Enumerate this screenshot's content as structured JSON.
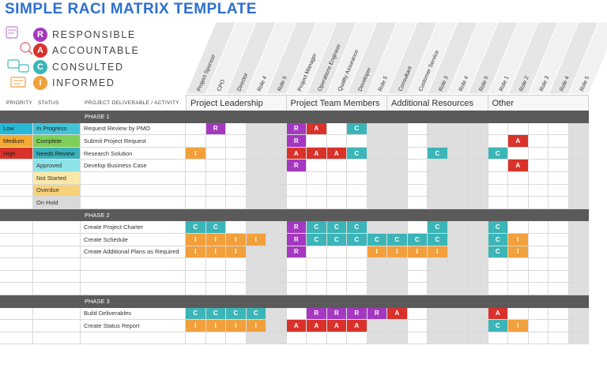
{
  "title": "SIMPLE RACI MATRIX TEMPLATE",
  "legend": [
    {
      "letter": "R",
      "label": "RESPONSIBLE",
      "color": "#a438c0"
    },
    {
      "letter": "A",
      "label": "ACCOUNTABLE",
      "color": "#d8322b"
    },
    {
      "letter": "C",
      "label": "CONSULTED",
      "color": "#3bb5b7"
    },
    {
      "letter": "I",
      "label": "INFORMED",
      "color": "#f2a03c"
    }
  ],
  "illustration_icon": "raci-illustration-icon",
  "column_headers": {
    "priority": "PRIORITY",
    "status": "STATUS",
    "deliverable": "PROJECT DELIVERABLE / ACTIVITY"
  },
  "groups": [
    {
      "name": "Project Leadership",
      "roles": [
        "Project Sponsor",
        "CPO",
        "Director",
        "Role 4",
        "Role 5"
      ]
    },
    {
      "name": "Project Team Members",
      "roles": [
        "Project Manager",
        "Operations Engineer",
        "Quality Assurance",
        "Developer",
        "Role 5"
      ]
    },
    {
      "name": "Additional Resources",
      "roles": [
        "Consultant",
        "Customer Service",
        "Role 3",
        "Role 4",
        "Role 5"
      ]
    },
    {
      "name": "Other",
      "roles": [
        "Role 1",
        "Role 2",
        "Role 3",
        "Role 4",
        "Role 5"
      ]
    }
  ],
  "colors": {
    "R": "#a438c0",
    "A": "#d8322b",
    "C": "#3bb5b7",
    "I": "#f2a03c",
    "low": "#28b8d8",
    "medium": "#f4a933",
    "high": "#d8322b",
    "in_progress": "#43c3d6",
    "complete": "#7fcf5a",
    "needs_review": "#39b0ba",
    "approved": "#8de3e8",
    "not_started": "#fbe9a8",
    "overdue": "#f7d27a",
    "on_hold": "#d9d9d9",
    "phase": "#5a5a5a",
    "shade": "#dedede"
  },
  "rows": [
    {
      "type": "phase",
      "label": "PHASE 1"
    },
    {
      "type": "task",
      "priority": "Low",
      "status": "In Progress",
      "task": "Request Review by PMO",
      "cells": [
        "",
        "R",
        "",
        "",
        "",
        "R",
        "A",
        "",
        "C",
        "",
        "",
        "",
        "",
        "",
        "",
        "",
        "",
        "",
        "",
        ""
      ]
    },
    {
      "type": "task",
      "priority": "Medium",
      "status": "Complete",
      "task": "Submit Project Request",
      "cells": [
        "",
        "",
        "",
        "",
        "",
        "R",
        "",
        "",
        "",
        "",
        "",
        "",
        "",
        "",
        "",
        "",
        "A",
        "",
        "",
        ""
      ]
    },
    {
      "type": "task",
      "priority": "High",
      "status": "Needs Review",
      "task": "Research Solution",
      "cells": [
        "I",
        "",
        "",
        "",
        "",
        "A",
        "A",
        "A",
        "C",
        "",
        "",
        "",
        "C",
        "",
        "",
        "C",
        "",
        "",
        "",
        ""
      ]
    },
    {
      "type": "task",
      "priority": "",
      "status": "Approved",
      "task": "Develop Business Case",
      "cells": [
        "",
        "",
        "",
        "",
        "",
        "R",
        "",
        "",
        "",
        "",
        "",
        "",
        "",
        "",
        "",
        "",
        "A",
        "",
        "",
        ""
      ]
    },
    {
      "type": "task",
      "priority": "",
      "status": "Not Started",
      "task": "",
      "cells": []
    },
    {
      "type": "task",
      "priority": "",
      "status": "Overdue",
      "task": "",
      "cells": []
    },
    {
      "type": "task",
      "priority": "",
      "status": "On Hold",
      "task": "",
      "cells": []
    },
    {
      "type": "phase",
      "label": "PHASE 2"
    },
    {
      "type": "task",
      "priority": "",
      "status": "",
      "task": "Create Project Charter",
      "cells": [
        "C",
        "C",
        "",
        "",
        "",
        "R",
        "C",
        "C",
        "C",
        "",
        "",
        "",
        "C",
        "",
        "",
        "C",
        "",
        "",
        "",
        ""
      ]
    },
    {
      "type": "task",
      "priority": "",
      "status": "",
      "task": "Create Schedule",
      "cells": [
        "I",
        "I",
        "I",
        "I",
        "",
        "R",
        "C",
        "C",
        "C",
        "C",
        "C",
        "C",
        "C",
        "",
        "",
        "C",
        "I",
        "",
        "",
        ""
      ]
    },
    {
      "type": "task",
      "priority": "",
      "status": "",
      "task": "Create Additional Plans as Required",
      "cells": [
        "I",
        "I",
        "I",
        "",
        "",
        "R",
        "",
        "",
        "",
        "I",
        "I",
        "I",
        "I",
        "",
        "",
        "C",
        "I",
        "",
        "",
        ""
      ]
    },
    {
      "type": "task",
      "priority": "",
      "status": "",
      "task": "",
      "cells": []
    },
    {
      "type": "task",
      "priority": "",
      "status": "",
      "task": "",
      "cells": []
    },
    {
      "type": "task",
      "priority": "",
      "status": "",
      "task": "",
      "cells": []
    },
    {
      "type": "phase",
      "label": "PHASE 3"
    },
    {
      "type": "task",
      "priority": "",
      "status": "",
      "task": "Build Deliverables",
      "cells": [
        "C",
        "C",
        "C",
        "C",
        "",
        "",
        "R",
        "R",
        "R",
        "R",
        "A",
        "",
        "",
        "",
        "",
        "A",
        "",
        "",
        "",
        ""
      ]
    },
    {
      "type": "task",
      "priority": "",
      "status": "",
      "task": "Create Status Report",
      "cells": [
        "I",
        "I",
        "I",
        "I",
        "",
        "A",
        "A",
        "A",
        "A",
        "",
        "",
        "",
        "",
        "",
        "",
        "C",
        "I",
        "",
        "",
        ""
      ]
    },
    {
      "type": "task",
      "priority": "",
      "status": "",
      "task": "",
      "cells": []
    }
  ]
}
